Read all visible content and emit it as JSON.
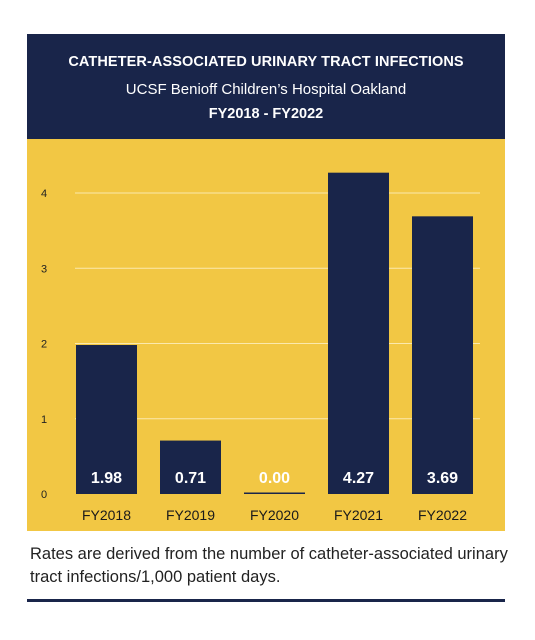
{
  "header": {
    "title": "CATHETER-ASSOCIATED URINARY TRACT INFECTIONS",
    "subtitle": "UCSF Benioff Children’s Hospital Oakland",
    "period": "FY2018 - FY2022"
  },
  "footnote": "Rates are derived from the number of catheter-associated urinary tract infections/1,000 patient days.",
  "colors": {
    "header_bg": "#19254a",
    "chart_bg": "#f2c744",
    "bar": "#19254a",
    "grid": "#fbe9ad",
    "label_text": "#ffffff"
  },
  "chart_data": {
    "type": "bar",
    "categories": [
      "FY2018",
      "FY2019",
      "FY2020",
      "FY2021",
      "FY2022"
    ],
    "values": [
      1.98,
      0.71,
      0.0,
      4.27,
      3.69
    ],
    "value_labels": [
      "1.98",
      "0.71",
      "0.00",
      "4.27",
      "3.69"
    ],
    "yticks": [
      0,
      1,
      2,
      3,
      4
    ],
    "ylim": [
      0,
      4.3
    ],
    "grid": true,
    "xlabel": "",
    "ylabel": ""
  }
}
